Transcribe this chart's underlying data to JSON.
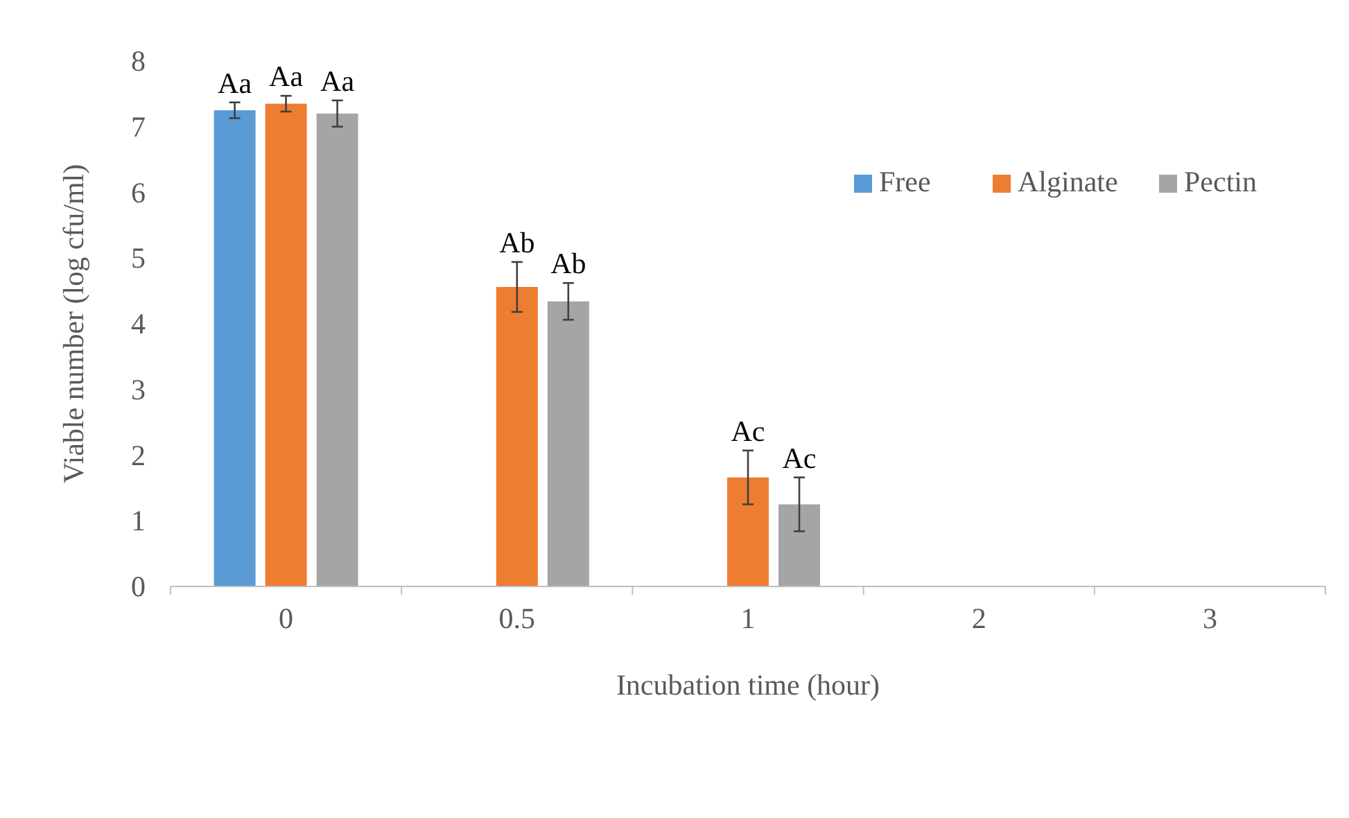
{
  "chart_data": {
    "type": "bar",
    "xlabel": "Incubation time (hour)",
    "ylabel": "Viable number (log cfu/ml)",
    "categories": [
      "0",
      "0.5",
      "1",
      "2",
      "3"
    ],
    "series": [
      {
        "name": "Free",
        "color": "#5b9bd5",
        "values": [
          7.25,
          0,
          0,
          0,
          0
        ],
        "errors": [
          0.12,
          null,
          null,
          null,
          null
        ]
      },
      {
        "name": "Alginate",
        "color": "#ed7d31",
        "values": [
          7.35,
          4.56,
          1.66,
          0,
          0
        ],
        "errors": [
          0.12,
          0.38,
          0.41,
          null,
          null
        ]
      },
      {
        "name": "Pectin",
        "color": "#a5a5a5",
        "values": [
          7.2,
          4.34,
          1.25,
          0,
          0
        ],
        "errors": [
          0.2,
          0.28,
          0.41,
          null,
          null
        ]
      }
    ],
    "ylim": [
      0,
      8
    ],
    "yticks": [
      0,
      1,
      2,
      3,
      4,
      5,
      6,
      7,
      8
    ],
    "grid": false,
    "legend": "top right",
    "annotations": [
      {
        "text": "Aa",
        "x": "0",
        "y": 7.37
      },
      {
        "text": "Aa",
        "x": "0",
        "y": 7.47
      },
      {
        "text": "Aa",
        "x": "0",
        "y": 7.4
      },
      {
        "text": "Ab",
        "x": "0.5",
        "y": 4.94
      },
      {
        "text": "Ab",
        "x": "0.5",
        "y": 4.62
      },
      {
        "text": "Ac",
        "x": "1",
        "y": 2.07
      },
      {
        "text": "Ac",
        "x": "1",
        "y": 1.66
      }
    ]
  }
}
